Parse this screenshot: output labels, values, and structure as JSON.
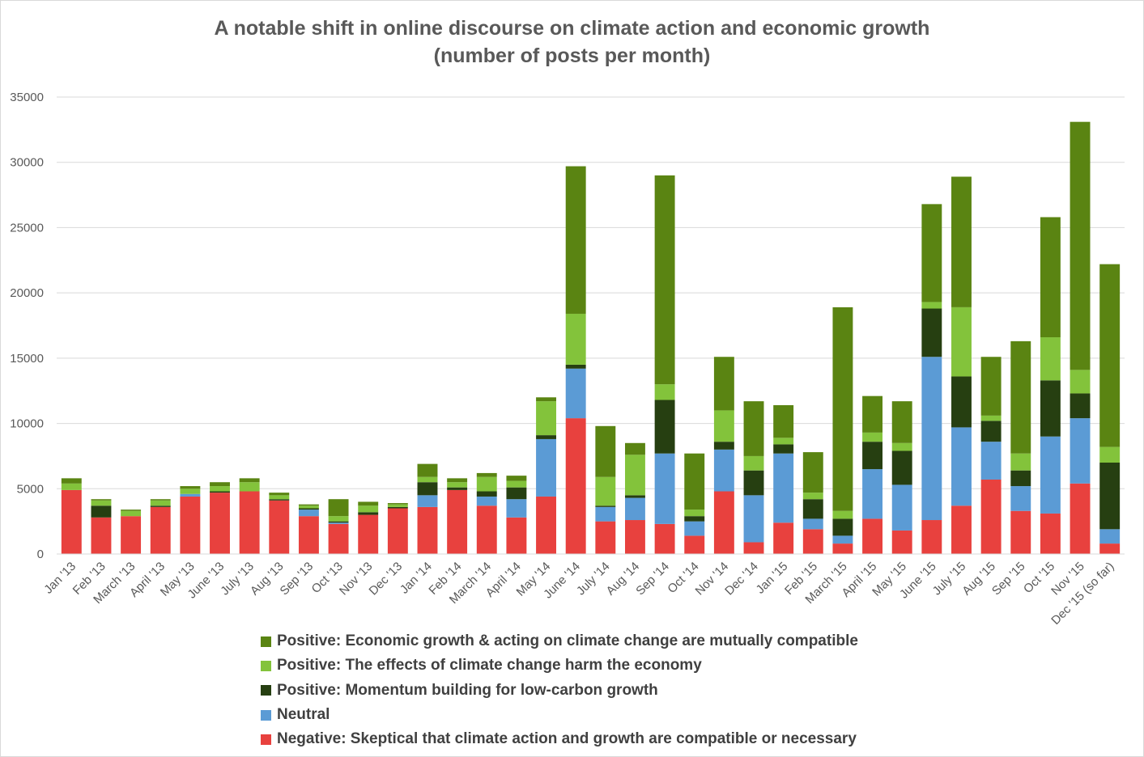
{
  "chart_data": {
    "type": "bar",
    "stacked": true,
    "title": "A notable shift in online discourse on climate action and economic growth",
    "subtitle": "(number of posts per month)",
    "xlabel": "",
    "ylabel": "",
    "ylim": [
      0,
      35000
    ],
    "yticks": [
      0,
      5000,
      10000,
      15000,
      20000,
      25000,
      30000,
      35000
    ],
    "grid": true,
    "legend_position": "bottom",
    "categories": [
      "Jan '13",
      "Feb '13",
      "March '13",
      "April '13",
      "May '13",
      "June '13",
      "July '13",
      "Aug '13",
      "Sep '13",
      "Oct '13",
      "Nov '13",
      "Dec '13",
      "Jan '14",
      "Feb '14",
      "March '14",
      "April '14",
      "May '14",
      "June '14",
      "July '14",
      "Aug '14",
      "Sep '14",
      "Oct '14",
      "Nov '14",
      "Dec '14",
      "Jan '15",
      "Feb '15",
      "March '15",
      "April '15",
      "May '15",
      "June '15",
      "July '15",
      "Aug '15",
      "Sep '15",
      "Oct '15",
      "Nov '15",
      "Dec '15 (so far)"
    ],
    "series": [
      {
        "name": "Negative: Skeptical that climate action and growth are compatible or necessary",
        "color": "#e8413e",
        "values": [
          4900,
          2800,
          2900,
          3600,
          4400,
          4700,
          4800,
          4100,
          2900,
          2300,
          3000,
          3500,
          3600,
          4900,
          3700,
          2800,
          4400,
          10400,
          2500,
          2600,
          2300,
          1400,
          4800,
          900,
          2400,
          1900,
          800,
          2700,
          1800,
          2600,
          3700,
          5700,
          3300,
          3100,
          5400,
          800
        ]
      },
      {
        "name": "Neutral",
        "color": "#5b9bd5",
        "values": [
          0,
          0,
          0,
          0,
          200,
          0,
          0,
          0,
          500,
          100,
          0,
          0,
          900,
          0,
          700,
          1400,
          4400,
          3800,
          1100,
          1700,
          5400,
          1100,
          3200,
          3600,
          5300,
          800,
          600,
          3800,
          3500,
          12500,
          6000,
          2900,
          1900,
          5900,
          5000,
          1100
        ]
      },
      {
        "name": "Positive: Momentum building for low-carbon growth",
        "color": "#263f11",
        "values": [
          0,
          900,
          0,
          100,
          0,
          100,
          0,
          100,
          100,
          100,
          200,
          100,
          1000,
          200,
          400,
          900,
          300,
          300,
          100,
          200,
          4100,
          400,
          600,
          1900,
          700,
          1500,
          1300,
          2100,
          2600,
          3700,
          3900,
          1600,
          1200,
          4300,
          1900,
          5100
        ]
      },
      {
        "name": "Positive: The effects of climate change harm the economy",
        "color": "#83c33b",
        "values": [
          500,
          400,
          400,
          400,
          400,
          400,
          700,
          300,
          200,
          400,
          500,
          200,
          400,
          400,
          1100,
          500,
          2600,
          3900,
          2200,
          3100,
          1200,
          500,
          2400,
          1100,
          500,
          500,
          600,
          700,
          600,
          500,
          5300,
          400,
          1300,
          3300,
          1800,
          1200
        ]
      },
      {
        "name": "Positive: Economic growth & acting on climate change are mutually compatible",
        "color": "#5a8412",
        "values": [
          400,
          100,
          100,
          100,
          200,
          300,
          300,
          200,
          100,
          1300,
          300,
          100,
          1000,
          300,
          300,
          400,
          300,
          11300,
          3900,
          900,
          16000,
          4300,
          4100,
          4200,
          2500,
          3100,
          15600,
          2800,
          3200,
          7500,
          10000,
          4500,
          8600,
          9200,
          19000,
          14000
        ]
      }
    ]
  }
}
